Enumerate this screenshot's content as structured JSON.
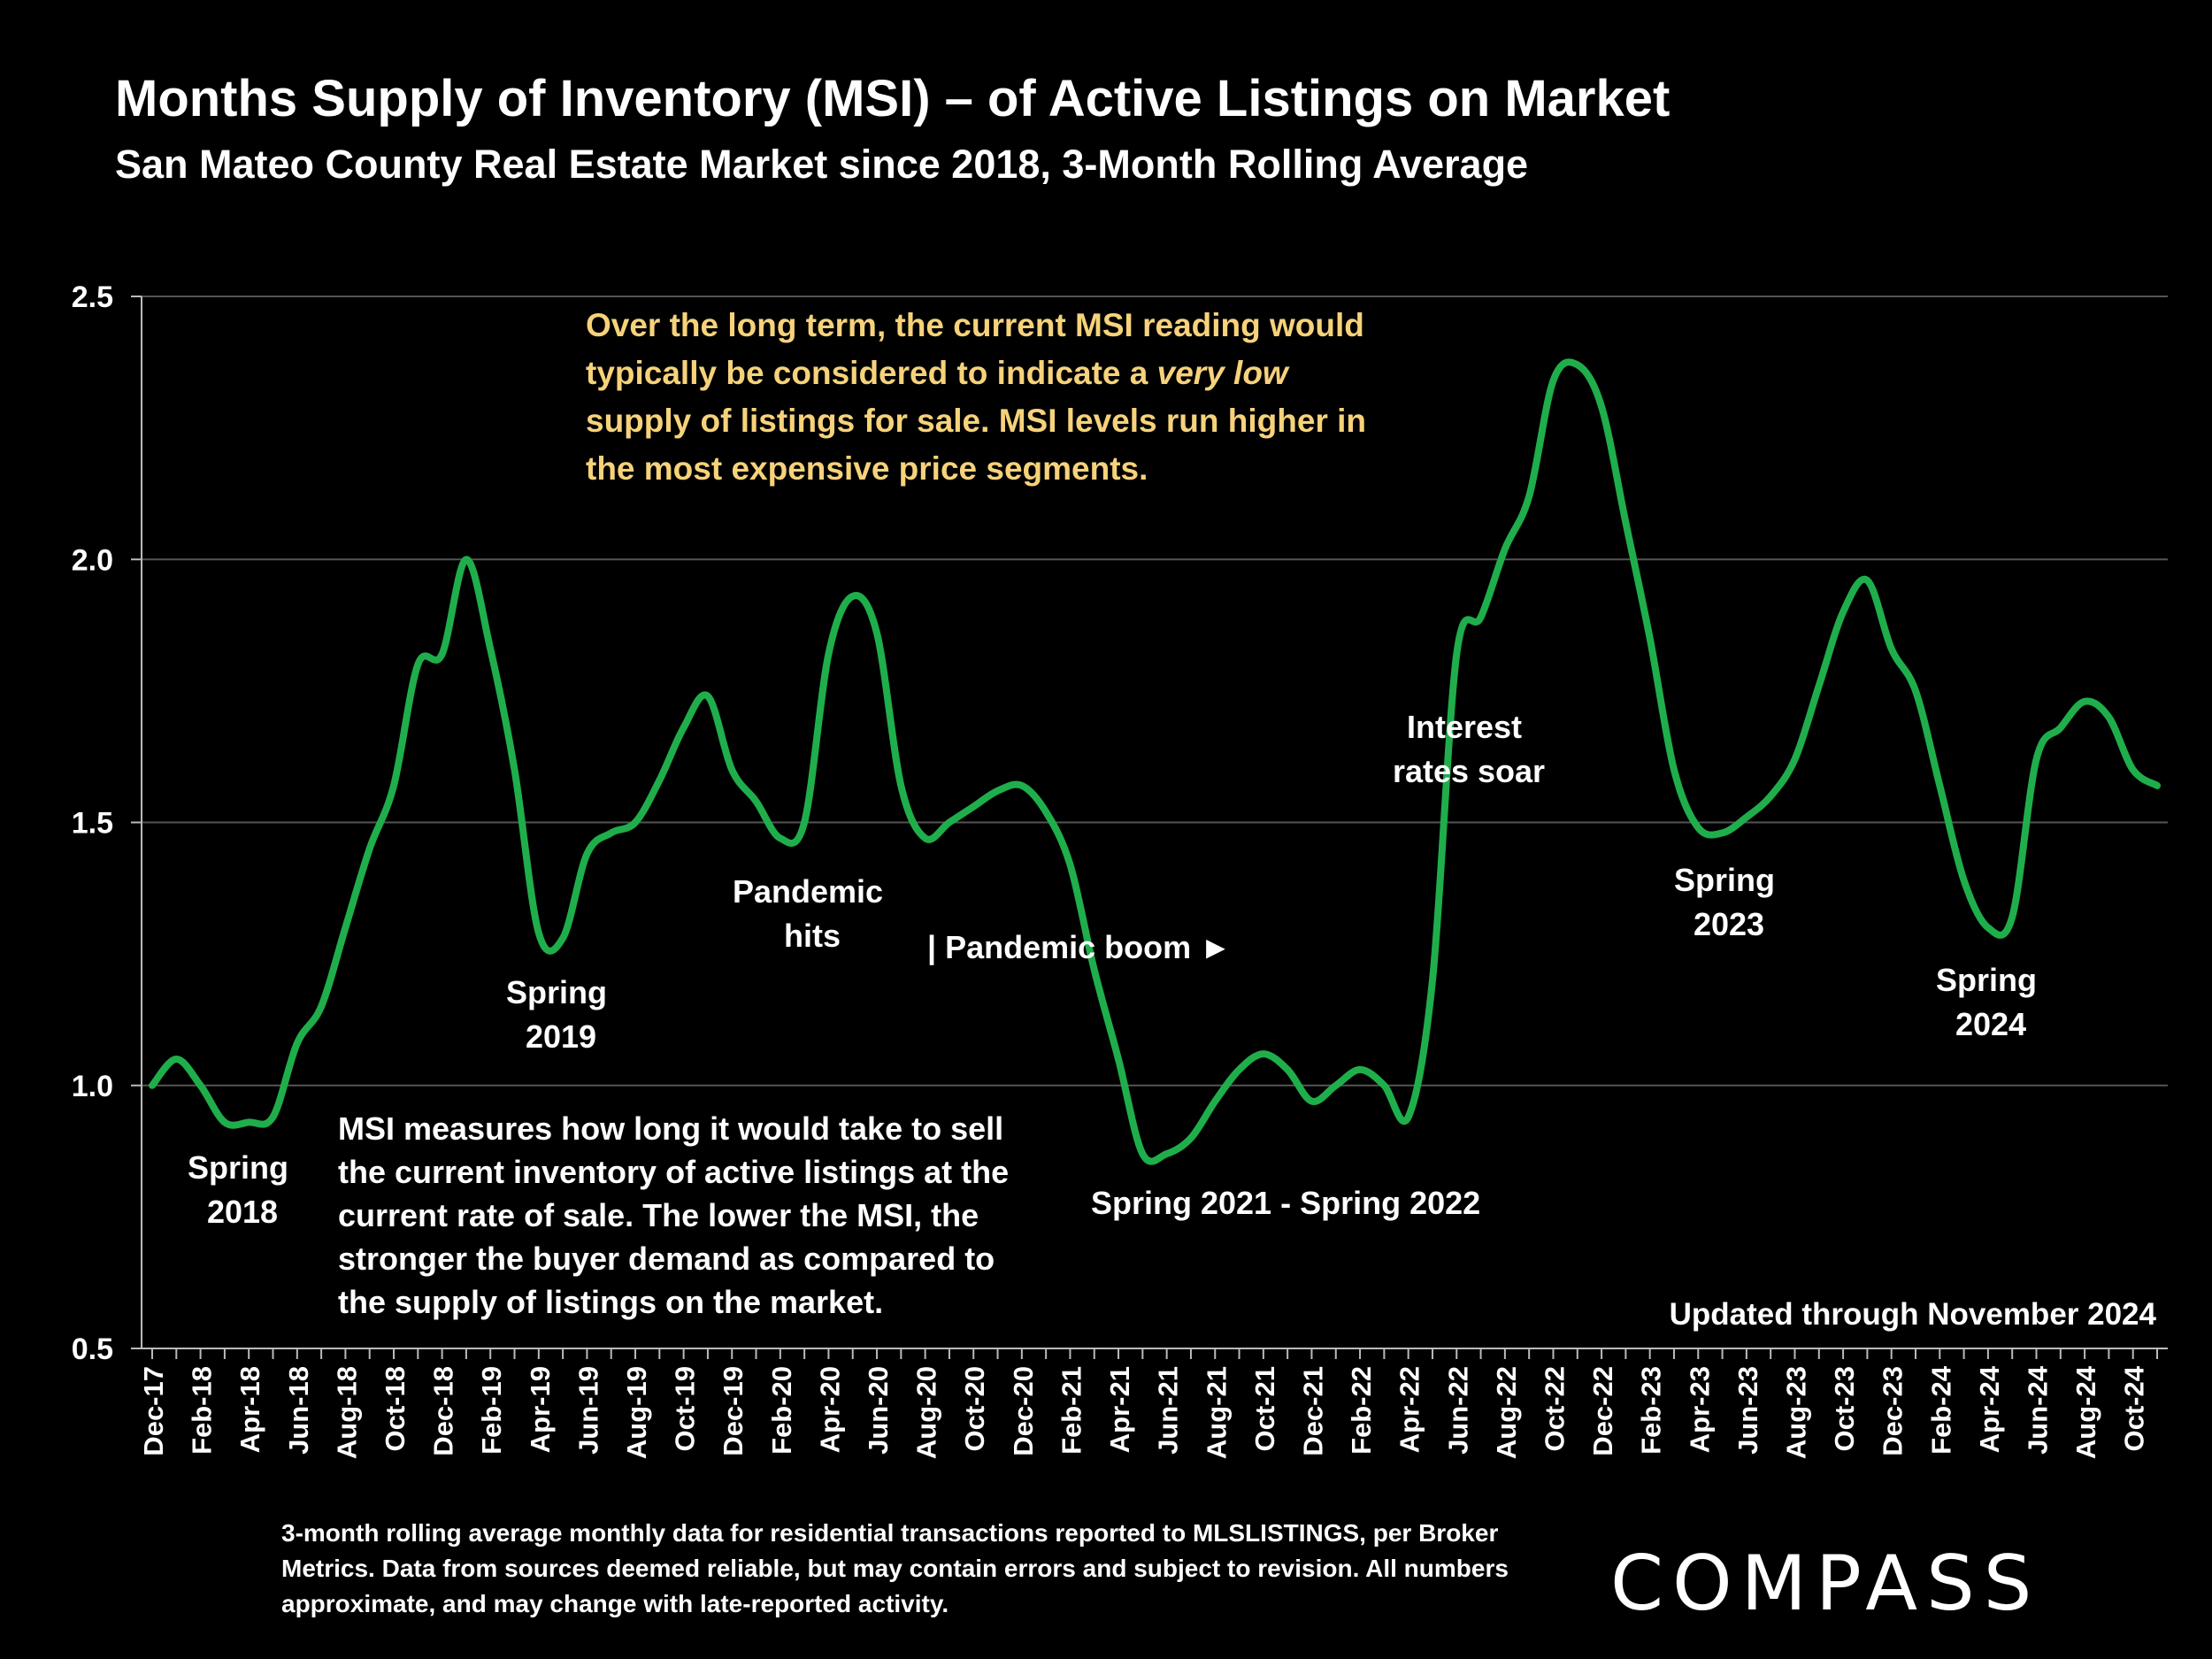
{
  "title": "Months Supply of Inventory (MSI) – of Active Listings on Market",
  "subtitle": "San Mateo County Real Estate Market since 2018, 3-Month Rolling Average",
  "footnote": "3-month rolling average monthly data for residential transactions reported to MLSLISTINGS, per Broker Metrics. Data from sources deemed reliable, but may contain errors and subject to revision. All numbers approximate, and may change with late-reported activity.",
  "brand": "COMPASS",
  "colors": {
    "background": "#000000",
    "line": "#1fae4b",
    "text": "#ffffff",
    "callout": "#f6d27a",
    "grid": "#555555"
  },
  "chart_data": {
    "type": "line",
    "ylim": [
      0.5,
      2.5
    ],
    "yticks": [
      "0.5",
      "1.0",
      "1.5",
      "2.0",
      "2.5"
    ],
    "grid": "horizontal",
    "x_tick_labels": [
      "Dec-17",
      "Feb-18",
      "Apr-18",
      "Jun-18",
      "Aug-18",
      "Oct-18",
      "Dec-18",
      "Feb-19",
      "Apr-19",
      "Jun-19",
      "Aug-19",
      "Oct-19",
      "Dec-19",
      "Feb-20",
      "Apr-20",
      "Jun-20",
      "Aug-20",
      "Oct-20",
      "Dec-20",
      "Feb-21",
      "Apr-21",
      "Jun-21",
      "Aug-21",
      "Oct-21",
      "Dec-21",
      "Feb-22",
      "Apr-22",
      "Jun-22",
      "Aug-22",
      "Oct-22",
      "Dec-22",
      "Feb-23",
      "Apr-23",
      "Jun-23",
      "Aug-23",
      "Oct-23",
      "Dec-23",
      "Feb-24",
      "Apr-24",
      "Jun-24",
      "Aug-24",
      "Oct-24"
    ],
    "x": [
      "Dec-17",
      "Jan-18",
      "Feb-18",
      "Mar-18",
      "Apr-18",
      "May-18",
      "Jun-18",
      "Jul-18",
      "Aug-18",
      "Sep-18",
      "Oct-18",
      "Nov-18",
      "Dec-18",
      "Jan-19",
      "Feb-19",
      "Mar-19",
      "Apr-19",
      "May-19",
      "Jun-19",
      "Jul-19",
      "Aug-19",
      "Sep-19",
      "Oct-19",
      "Nov-19",
      "Dec-19",
      "Jan-20",
      "Feb-20",
      "Mar-20",
      "Apr-20",
      "May-20",
      "Jun-20",
      "Jul-20",
      "Aug-20",
      "Sep-20",
      "Oct-20",
      "Nov-20",
      "Dec-20",
      "Jan-21",
      "Feb-21",
      "Mar-21",
      "Apr-21",
      "May-21",
      "Jun-21",
      "Jul-21",
      "Aug-21",
      "Sep-21",
      "Oct-21",
      "Nov-21",
      "Dec-21",
      "Jan-22",
      "Feb-22",
      "Mar-22",
      "Apr-22",
      "May-22",
      "Jun-22",
      "Jul-22",
      "Aug-22",
      "Sep-22",
      "Oct-22",
      "Nov-22",
      "Dec-22",
      "Jan-23",
      "Feb-23",
      "Mar-23",
      "Apr-23",
      "May-23",
      "Jun-23",
      "Jul-23",
      "Aug-23",
      "Sep-23",
      "Oct-23",
      "Nov-23",
      "Dec-23",
      "Jan-24",
      "Feb-24",
      "Mar-24",
      "Apr-24",
      "May-24",
      "Jun-24",
      "Jul-24",
      "Aug-24",
      "Sep-24",
      "Oct-24",
      "Nov-24"
    ],
    "series": [
      {
        "values": [
          1.0,
          1.05,
          1.0,
          0.93,
          0.93,
          0.94,
          1.08,
          1.15,
          1.3,
          1.45,
          1.57,
          1.8,
          1.82,
          2.0,
          1.83,
          1.6,
          1.29,
          1.28,
          1.44,
          1.48,
          1.5,
          1.58,
          1.68,
          1.74,
          1.6,
          1.54,
          1.47,
          1.5,
          1.82,
          1.93,
          1.86,
          1.57,
          1.47,
          1.5,
          1.53,
          1.56,
          1.57,
          1.52,
          1.42,
          1.22,
          1.05,
          0.87,
          0.87,
          0.9,
          0.97,
          1.03,
          1.06,
          1.03,
          0.97,
          1.0,
          1.03,
          1.0,
          0.94,
          1.2,
          1.82,
          1.89,
          2.02,
          2.12,
          2.34,
          2.37,
          2.29,
          2.07,
          1.85,
          1.6,
          1.49,
          1.48,
          1.51,
          1.55,
          1.62,
          1.76,
          1.9,
          1.96,
          1.83,
          1.75,
          1.57,
          1.39,
          1.3,
          1.32,
          1.62,
          1.68,
          1.73,
          1.7,
          1.6,
          1.57
        ]
      }
    ],
    "annotations": [
      {
        "text": "Over the long term, the current MSI reading would typically be considered to indicate a ",
        "emphasis": "very low",
        "text_after": " supply of listings for sale. MSI levels run higher in the most expensive price segments."
      },
      {
        "text": "MSI measures how long it would take to sell the current inventory of active listings at the current rate of sale. The lower the MSI, the stronger the buyer demand as compared to the supply of listings on the market."
      },
      {
        "text": "Spring 2018"
      },
      {
        "text": "Spring 2019"
      },
      {
        "text": "Pandemic hits"
      },
      {
        "text": "| Pandemic boom ►"
      },
      {
        "text": "Spring 2021 - Spring 2022"
      },
      {
        "text": "Interest rates soar"
      },
      {
        "text": "Spring 2023"
      },
      {
        "text": "Spring 2024"
      },
      {
        "text": "Updated through November 2024"
      }
    ]
  }
}
